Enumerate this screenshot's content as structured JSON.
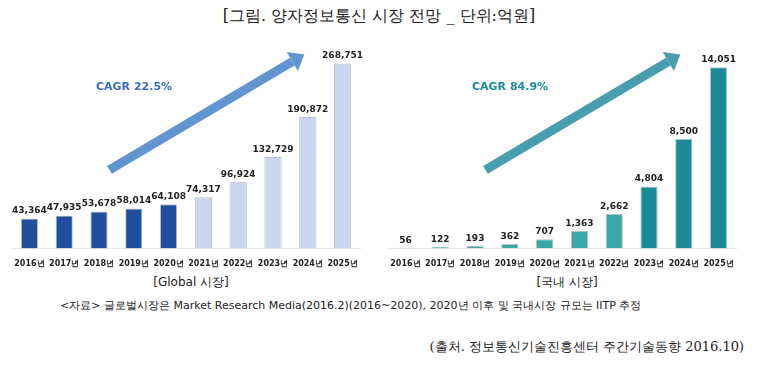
{
  "title": "[그림. 양자정보통신 시장 전망 _ 단위:억원]",
  "note": "<자료> 글로벌시장은 Market Research Media(2016.2)(2016~2020), 2020년 이후 및 국내시장 규모는 IITP 추정",
  "source": "(출처. 정보통신기술진흥센터 주간기술동향 2016.10)",
  "chart_data": [
    {
      "type": "bar",
      "title": "[Global 시장]",
      "categories": [
        "2016년",
        "2017년",
        "2018년",
        "2019년",
        "2020년",
        "2021년",
        "2022년",
        "2023년",
        "2024년",
        "2025년"
      ],
      "values": [
        43364,
        47935,
        53678,
        58014,
        64108,
        74317,
        96924,
        132729,
        190872,
        268751
      ],
      "value_labels": [
        "43,364",
        "47,935",
        "53,678",
        "58,014",
        "64,108",
        "74,317",
        "96,924",
        "132,729",
        "190,872",
        "268,751"
      ],
      "colors": [
        "#1f4f9e",
        "#1f4f9e",
        "#1f4f9e",
        "#1f4f9e",
        "#1f4f9e",
        "#c9d8f0",
        "#c9d8f0",
        "#c9d8f0",
        "#c9d8f0",
        "#c9d8f0"
      ],
      "data_labels": true,
      "tick_labels": "x",
      "grid": false,
      "annotations": [
        "CAGR 22.5%"
      ]
    },
    {
      "type": "bar",
      "title": "[국내 시장]",
      "categories": [
        "2016년",
        "2017년",
        "2018년",
        "2019년",
        "2020년",
        "2021년",
        "2022년",
        "2023년",
        "2024년",
        "2025년"
      ],
      "values": [
        56,
        122,
        193,
        362,
        707,
        1363,
        2662,
        4804,
        8500,
        14051
      ],
      "value_labels": [
        "56",
        "122",
        "193",
        "362",
        "707",
        "1,363",
        "2,662",
        "4,804",
        "8,500",
        "14,051"
      ],
      "colors": [
        "#3aa7a8",
        "#3aa7a8",
        "#3aa7a8",
        "#3aa7a8",
        "#3aa7a8",
        "#3aa7a8",
        "#3aa7a8",
        "#1a8b96",
        "#1a8b96",
        "#1a8b96"
      ],
      "data_labels": true,
      "tick_labels": "x",
      "grid": false,
      "annotations": [
        "CAGR 84.9%"
      ]
    }
  ]
}
